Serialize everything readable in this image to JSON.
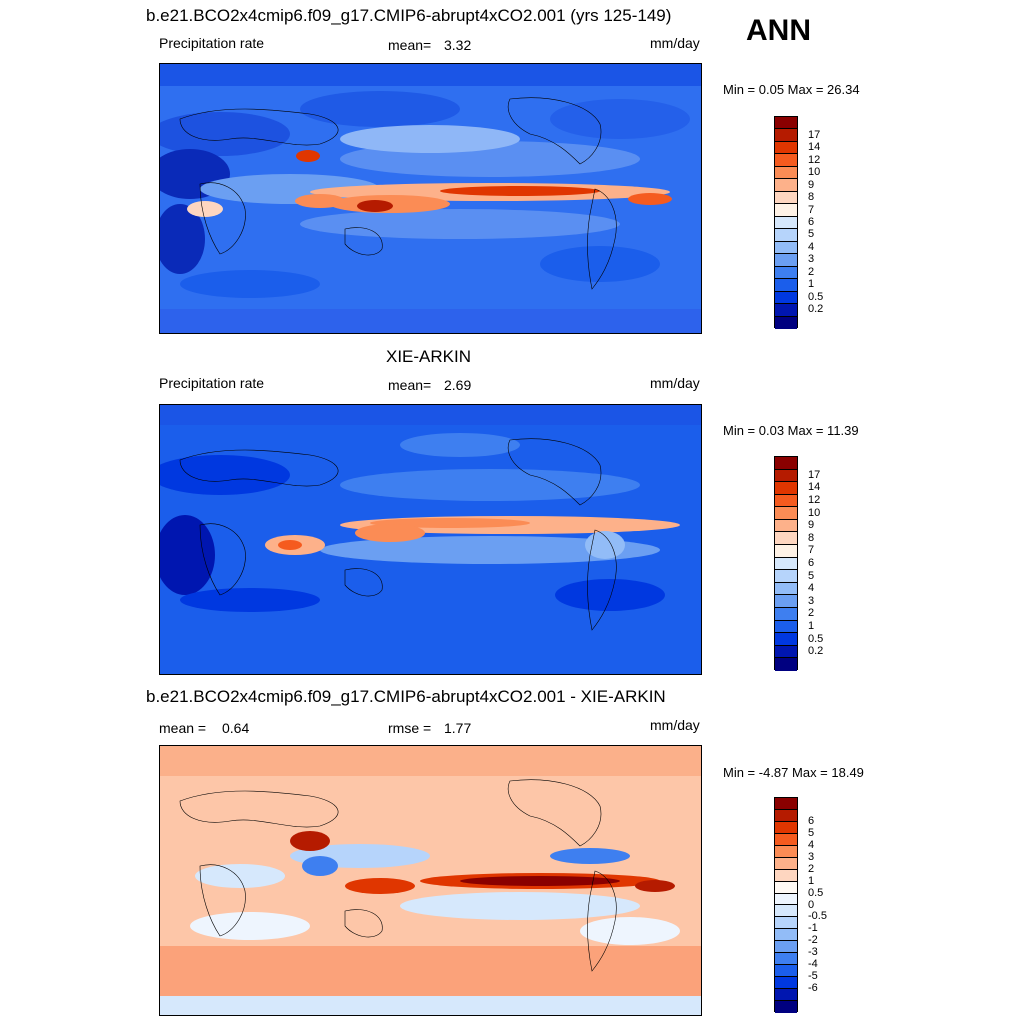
{
  "season": "ANN",
  "panels": [
    {
      "id": "model",
      "title": "b.e21.BCO2x4cmip6.f09_g17.CMIP6-abrupt4xCO2.001 (yrs 125-149)",
      "left_label": "Precipitation rate",
      "center_label": "mean=",
      "center_value": "3.32",
      "right_label": "mm/day",
      "minmax": "Min =   0.05 Max =  26.34",
      "colorbar": {
        "colors": [
          "#8a0000",
          "#b51b00",
          "#e03600",
          "#f55b1f",
          "#fb8c55",
          "#fdb18a",
          "#fed6c0",
          "#fef2e6",
          "#d6e8fc",
          "#b6d4fb",
          "#92bcf7",
          "#6b9ff2",
          "#3e7ff0",
          "#1b5eeb",
          "#0038e0",
          "#0016b0",
          "#000080"
        ],
        "ticks": [
          "17",
          "14",
          "12",
          "10",
          "9",
          "8",
          "7",
          "6",
          "5",
          "4",
          "3",
          "2",
          "1",
          "0.5",
          "0.2"
        ]
      }
    },
    {
      "id": "obs",
      "title": "XIE-ARKIN",
      "left_label": "Precipitation rate",
      "center_label": "mean=",
      "center_value": "2.69",
      "right_label": "mm/day",
      "minmax": "Min =   0.03 Max =  11.39",
      "colorbar": {
        "colors": [
          "#8a0000",
          "#b51b00",
          "#e03600",
          "#f55b1f",
          "#fb8c55",
          "#fdb18a",
          "#fed6c0",
          "#fef2e6",
          "#d6e8fc",
          "#b6d4fb",
          "#92bcf7",
          "#6b9ff2",
          "#3e7ff0",
          "#1b5eeb",
          "#0038e0",
          "#0016b0",
          "#000080"
        ],
        "ticks": [
          "17",
          "14",
          "12",
          "10",
          "9",
          "8",
          "7",
          "6",
          "5",
          "4",
          "3",
          "2",
          "1",
          "0.5",
          "0.2"
        ]
      }
    },
    {
      "id": "diff",
      "title": "b.e21.BCO2x4cmip6.f09_g17.CMIP6-abrupt4xCO2.001 - XIE-ARKIN",
      "left_label": "mean =",
      "left_value": "0.64",
      "center_label": "rmse =",
      "center_value": "1.77",
      "right_label": "mm/day",
      "minmax": "Min =  -4.87 Max =  18.49",
      "colorbar": {
        "colors": [
          "#8a0000",
          "#b51b00",
          "#e03600",
          "#f55b1f",
          "#fb8c55",
          "#fdb18a",
          "#fed6c0",
          "#fffaf5",
          "#eef5fe",
          "#d6e8fc",
          "#b6d4fb",
          "#92bcf7",
          "#6b9ff2",
          "#3e7ff0",
          "#1b5eeb",
          "#0038e0",
          "#0016b0",
          "#000080"
        ],
        "ticks": [
          "6",
          "5",
          "4",
          "3",
          "2",
          "1",
          "0.5",
          "0",
          "-0.5",
          "-1",
          "-2",
          "-3",
          "-4",
          "-5",
          "-6"
        ]
      }
    }
  ]
}
